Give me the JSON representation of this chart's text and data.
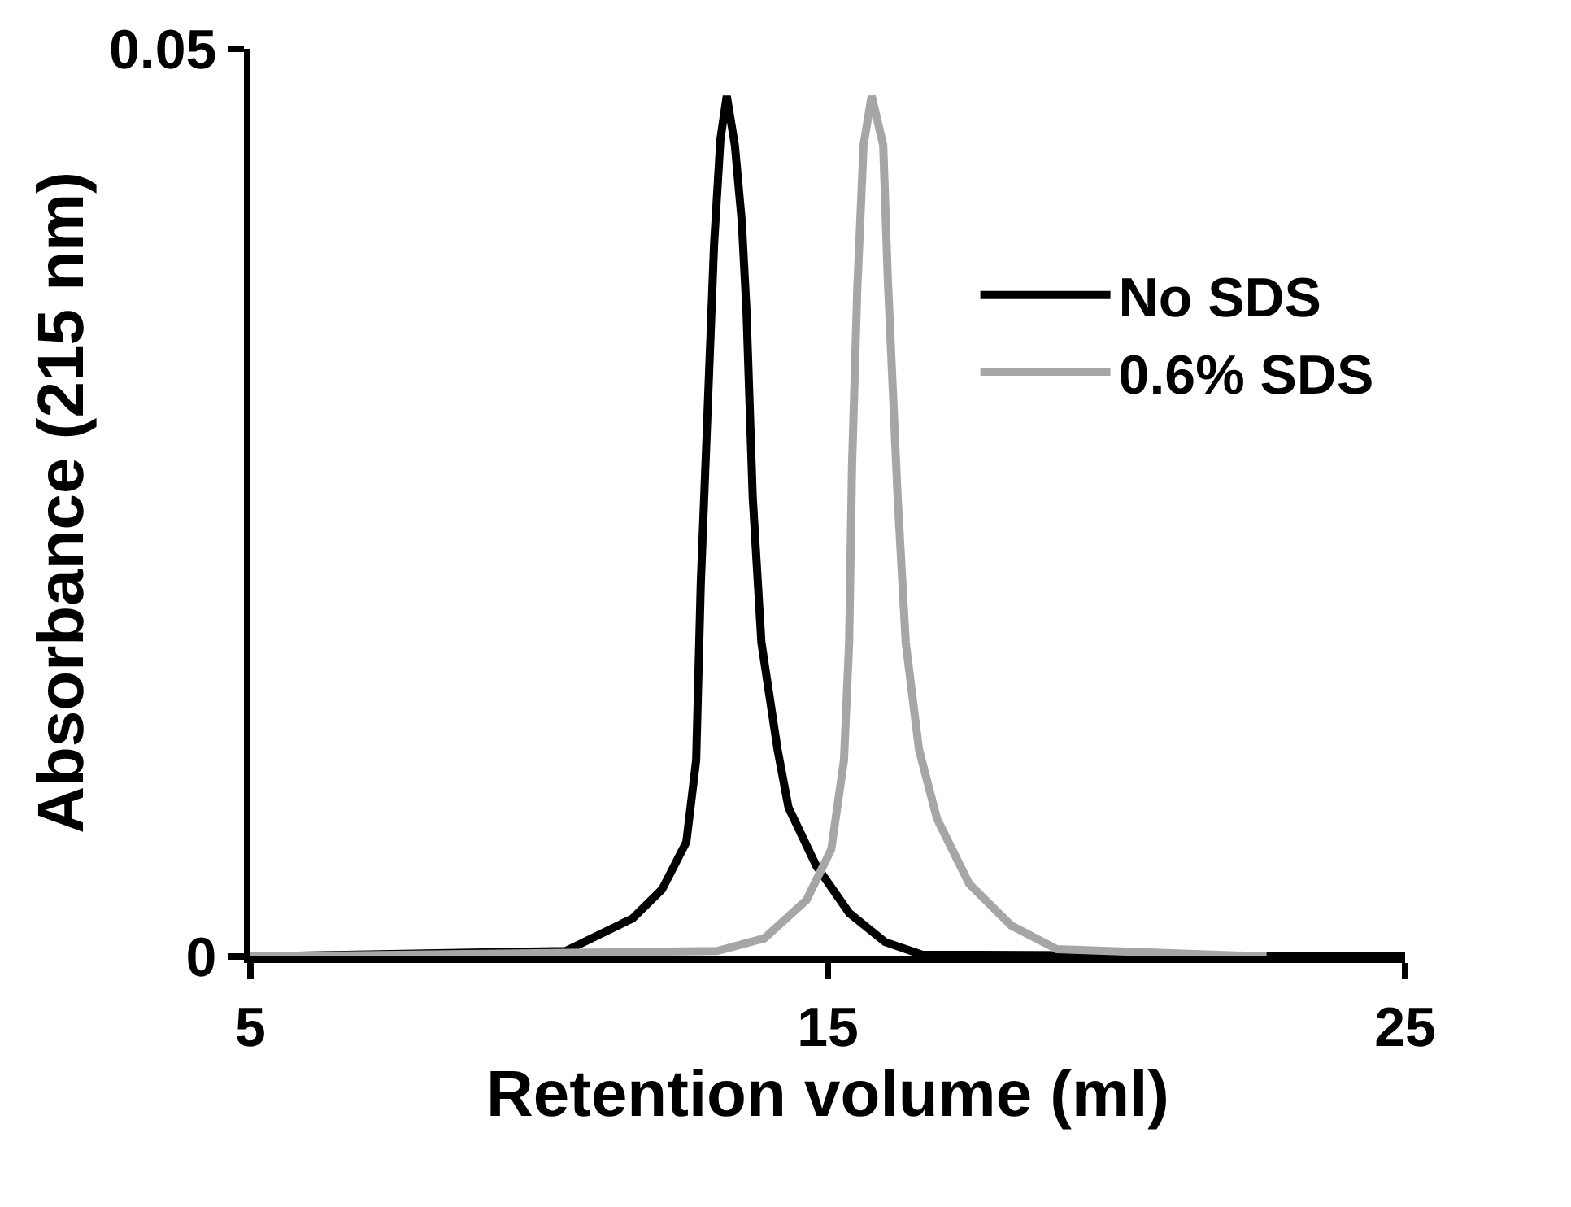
{
  "chart_data": {
    "type": "line",
    "xlabel": "Retention volume (ml)",
    "ylabel": "Absorbance (215 nm)",
    "xlim": [
      5,
      25
    ],
    "xticks": [
      5,
      15,
      25
    ],
    "ylim": [
      0,
      0.05
    ],
    "yticks": [
      0,
      0.05
    ],
    "legend": "top right",
    "marker": "none",
    "line_style": "solid",
    "series": [
      {
        "name": "No SDS",
        "color": "#000000",
        "x": [
          5,
          10.46,
          11.62,
          12.13,
          12.55,
          12.72,
          12.8,
          12.92,
          13.03,
          13.14,
          13.25,
          13.39,
          13.51,
          13.59,
          13.7,
          13.85,
          14.13,
          14.32,
          14.8,
          15.37,
          15.99,
          16.63,
          25
        ],
        "values": [
          0,
          0.0003,
          0.0021,
          0.0037,
          0.0063,
          0.0108,
          0.0205,
          0.0302,
          0.0392,
          0.045,
          0.0474,
          0.0447,
          0.0405,
          0.0357,
          0.0253,
          0.0173,
          0.0114,
          0.0082,
          0.005,
          0.0024,
          0.0008,
          0.0001,
          0
        ]
      },
      {
        "name": "0.6% SDS",
        "color": "#a6a6a6",
        "x": [
          5,
          13.08,
          13.9,
          14.63,
          15.06,
          15.28,
          15.37,
          15.42,
          15.51,
          15.62,
          15.76,
          15.96,
          16.04,
          16.21,
          16.35,
          16.58,
          16.89,
          17.45,
          18.18,
          18.97,
          22.6
        ],
        "values": [
          0,
          0.0003,
          0.001,
          0.0031,
          0.0059,
          0.0108,
          0.0173,
          0.027,
          0.0367,
          0.0447,
          0.0474,
          0.0447,
          0.0373,
          0.0253,
          0.0173,
          0.0114,
          0.0076,
          0.004,
          0.0017,
          0.0004,
          0
        ]
      }
    ]
  }
}
